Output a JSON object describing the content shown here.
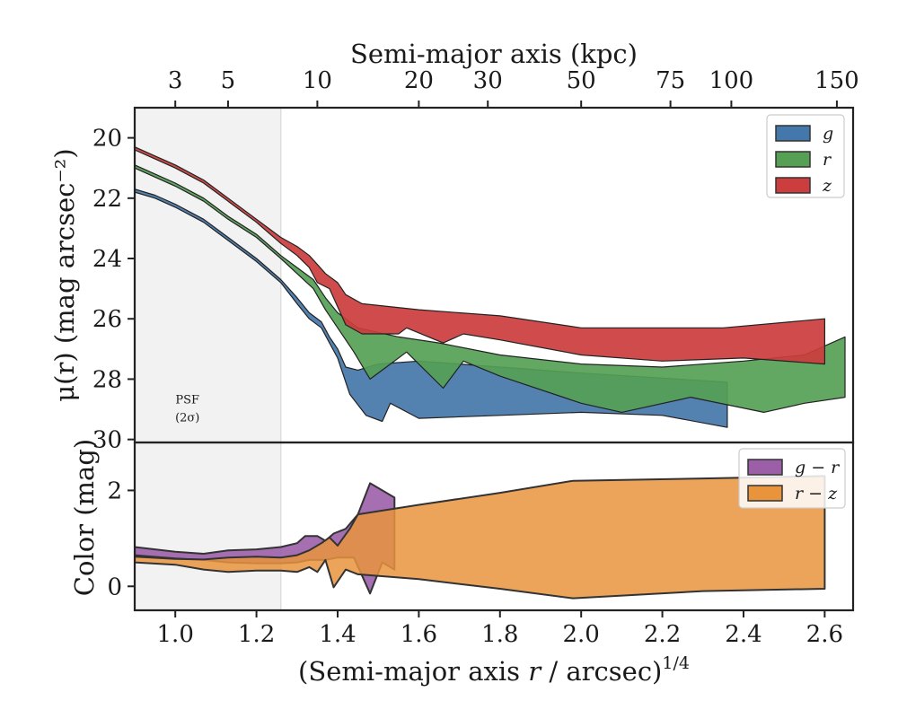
{
  "chart_data": [
    {
      "type": "area",
      "panel": "surface-brightness",
      "ylabel": "μ(r) (mag arcsec⁻²)",
      "top_xlabel": "Semi-major axis (kpc)",
      "xlim": [
        0.9,
        2.67
      ],
      "ylim": [
        30.1,
        19.0
      ],
      "y_inverted": true,
      "yticks": [
        20,
        22,
        24,
        26,
        28,
        30
      ],
      "top_ticks": [
        {
          "label": "3",
          "x": 1.0
        },
        {
          "label": "5",
          "x": 1.13
        },
        {
          "label": "10",
          "x": 1.35
        },
        {
          "label": "20",
          "x": 1.6
        },
        {
          "label": "30",
          "x": 1.77
        },
        {
          "label": "50",
          "x": 2.0
        },
        {
          "label": "75",
          "x": 2.22
        },
        {
          "label": "100",
          "x": 2.37
        },
        {
          "label": "150",
          "x": 2.63
        }
      ],
      "legend": {
        "position": "top-right"
      },
      "psf_region": {
        "x_end": 1.26,
        "label_line1": "PSF",
        "label_line2": "(2σ)"
      },
      "series": [
        {
          "name": "g",
          "color": "#4477aa",
          "upper": [
            [
              0.9,
              21.7
            ],
            [
              0.95,
              21.9
            ],
            [
              1.0,
              22.2
            ],
            [
              1.07,
              22.7
            ],
            [
              1.13,
              23.3
            ],
            [
              1.2,
              24.0
            ],
            [
              1.26,
              24.7
            ],
            [
              1.3,
              25.3
            ],
            [
              1.33,
              25.8
            ],
            [
              1.36,
              26.1
            ],
            [
              1.38,
              26.6
            ],
            [
              1.4,
              27.0
            ],
            [
              1.42,
              27.6
            ],
            [
              1.45,
              27.7
            ],
            [
              1.5,
              27.5
            ],
            [
              1.6,
              27.4
            ],
            [
              1.7,
              27.5
            ],
            [
              1.8,
              27.6
            ],
            [
              2.0,
              27.8
            ],
            [
              2.36,
              28.1
            ]
          ],
          "lower": [
            [
              0.9,
              21.8
            ],
            [
              0.95,
              22.0
            ],
            [
              1.0,
              22.3
            ],
            [
              1.07,
              22.8
            ],
            [
              1.13,
              23.4
            ],
            [
              1.2,
              24.1
            ],
            [
              1.26,
              24.8
            ],
            [
              1.3,
              25.5
            ],
            [
              1.33,
              26.0
            ],
            [
              1.36,
              26.3
            ],
            [
              1.38,
              26.8
            ],
            [
              1.4,
              27.3
            ],
            [
              1.43,
              28.5
            ],
            [
              1.47,
              29.2
            ],
            [
              1.51,
              29.4
            ],
            [
              1.53,
              28.8
            ],
            [
              1.6,
              29.3
            ],
            [
              1.8,
              29.2
            ],
            [
              2.0,
              29.1
            ],
            [
              2.2,
              29.2
            ],
            [
              2.36,
              29.6
            ]
          ]
        },
        {
          "name": "r",
          "color": "#55a055",
          "upper": [
            [
              0.9,
              20.9
            ],
            [
              0.95,
              21.2
            ],
            [
              1.0,
              21.5
            ],
            [
              1.07,
              22.0
            ],
            [
              1.13,
              22.6
            ],
            [
              1.2,
              23.2
            ],
            [
              1.26,
              23.9
            ],
            [
              1.3,
              24.3
            ],
            [
              1.34,
              24.7
            ],
            [
              1.37,
              25.3
            ],
            [
              1.4,
              25.8
            ],
            [
              1.45,
              26.3
            ],
            [
              1.55,
              26.6
            ],
            [
              1.65,
              26.8
            ],
            [
              1.8,
              27.2
            ],
            [
              2.0,
              27.5
            ],
            [
              2.2,
              27.6
            ],
            [
              2.4,
              27.4
            ],
            [
              2.55,
              27.2
            ],
            [
              2.65,
              26.6
            ]
          ],
          "lower": [
            [
              0.9,
              21.0
            ],
            [
              0.95,
              21.3
            ],
            [
              1.0,
              21.6
            ],
            [
              1.07,
              22.1
            ],
            [
              1.13,
              22.7
            ],
            [
              1.2,
              23.3
            ],
            [
              1.26,
              24.0
            ],
            [
              1.3,
              24.5
            ],
            [
              1.34,
              25.0
            ],
            [
              1.37,
              25.7
            ],
            [
              1.4,
              26.3
            ],
            [
              1.44,
              27.1
            ],
            [
              1.48,
              28.0
            ],
            [
              1.52,
              27.6
            ],
            [
              1.57,
              27.1
            ],
            [
              1.66,
              28.3
            ],
            [
              1.71,
              27.4
            ],
            [
              1.8,
              27.9
            ],
            [
              2.0,
              28.8
            ],
            [
              2.1,
              29.1
            ],
            [
              2.27,
              28.6
            ],
            [
              2.45,
              29.1
            ],
            [
              2.55,
              28.8
            ],
            [
              2.65,
              28.6
            ]
          ]
        },
        {
          "name": "z",
          "color": "#cc3d3d",
          "upper": [
            [
              0.9,
              20.3
            ],
            [
              0.95,
              20.6
            ],
            [
              1.0,
              20.9
            ],
            [
              1.07,
              21.4
            ],
            [
              1.13,
              22.0
            ],
            [
              1.2,
              22.7
            ],
            [
              1.26,
              23.3
            ],
            [
              1.3,
              23.6
            ],
            [
              1.33,
              23.9
            ],
            [
              1.35,
              24.2
            ],
            [
              1.37,
              24.5
            ],
            [
              1.4,
              24.8
            ],
            [
              1.42,
              25.2
            ],
            [
              1.46,
              25.5
            ],
            [
              1.6,
              25.7
            ],
            [
              1.8,
              25.9
            ],
            [
              2.0,
              26.3
            ],
            [
              2.2,
              26.3
            ],
            [
              2.35,
              26.3
            ],
            [
              2.6,
              26.0
            ]
          ],
          "lower": [
            [
              0.9,
              20.4
            ],
            [
              0.95,
              20.7
            ],
            [
              1.0,
              21.0
            ],
            [
              1.07,
              21.5
            ],
            [
              1.13,
              22.1
            ],
            [
              1.2,
              22.8
            ],
            [
              1.26,
              23.5
            ],
            [
              1.3,
              23.9
            ],
            [
              1.33,
              24.3
            ],
            [
              1.35,
              24.8
            ],
            [
              1.38,
              25.0
            ],
            [
              1.42,
              26.2
            ],
            [
              1.46,
              26.5
            ],
            [
              1.55,
              26.5
            ],
            [
              1.57,
              26.3
            ],
            [
              1.66,
              26.8
            ],
            [
              1.71,
              26.5
            ],
            [
              1.8,
              26.7
            ],
            [
              2.0,
              27.2
            ],
            [
              2.2,
              27.4
            ],
            [
              2.4,
              27.3
            ],
            [
              2.6,
              27.5
            ]
          ]
        }
      ]
    },
    {
      "type": "area",
      "panel": "color",
      "xlabel": "(Semi-major axis r / arcsec)^1/4",
      "ylabel": "Color (mag)",
      "xlim": [
        0.9,
        2.67
      ],
      "ylim": [
        -0.5,
        3.0
      ],
      "xticks": [
        1.0,
        1.2,
        1.4,
        1.6,
        1.8,
        2.0,
        2.2,
        2.4,
        2.6
      ],
      "yticks": [
        0,
        2
      ],
      "legend": {
        "position": "top-right"
      },
      "series": [
        {
          "name": "g − r",
          "color": "#9b5fa8",
          "upper": [
            [
              0.9,
              0.82
            ],
            [
              1.0,
              0.72
            ],
            [
              1.07,
              0.68
            ],
            [
              1.13,
              0.75
            ],
            [
              1.2,
              0.77
            ],
            [
              1.26,
              0.82
            ],
            [
              1.3,
              0.9
            ],
            [
              1.32,
              1.05
            ],
            [
              1.35,
              1.05
            ],
            [
              1.37,
              0.95
            ],
            [
              1.39,
              1.1
            ],
            [
              1.42,
              1.2
            ],
            [
              1.45,
              1.5
            ],
            [
              1.48,
              2.15
            ],
            [
              1.54,
              1.85
            ]
          ],
          "lower": [
            [
              1.54,
              0.35
            ],
            [
              1.51,
              0.5
            ],
            [
              1.48,
              -0.15
            ],
            [
              1.44,
              0.6
            ],
            [
              1.4,
              0.6
            ],
            [
              1.37,
              0.55
            ],
            [
              1.33,
              0.55
            ],
            [
              1.3,
              0.5
            ],
            [
              1.26,
              0.48
            ],
            [
              1.2,
              0.48
            ],
            [
              1.13,
              0.5
            ],
            [
              1.07,
              0.55
            ],
            [
              1.0,
              0.58
            ],
            [
              0.9,
              0.65
            ]
          ]
        },
        {
          "name": "r − z",
          "color": "#e8943d",
          "upper": [
            [
              0.9,
              0.62
            ],
            [
              1.0,
              0.57
            ],
            [
              1.07,
              0.56
            ],
            [
              1.13,
              0.6
            ],
            [
              1.2,
              0.62
            ],
            [
              1.26,
              0.6
            ],
            [
              1.3,
              0.65
            ],
            [
              1.33,
              0.75
            ],
            [
              1.36,
              0.9
            ],
            [
              1.38,
              1.02
            ],
            [
              1.4,
              0.85
            ],
            [
              1.43,
              1.2
            ],
            [
              1.45,
              1.5
            ],
            [
              1.6,
              1.7
            ],
            [
              1.8,
              1.95
            ],
            [
              1.98,
              2.2
            ],
            [
              2.3,
              2.25
            ],
            [
              2.6,
              2.3
            ]
          ],
          "lower": [
            [
              2.6,
              -0.05
            ],
            [
              2.3,
              -0.1
            ],
            [
              1.98,
              -0.25
            ],
            [
              1.8,
              -0.05
            ],
            [
              1.6,
              0.15
            ],
            [
              1.45,
              0.25
            ],
            [
              1.42,
              0.35
            ],
            [
              1.39,
              -0.02
            ],
            [
              1.37,
              0.55
            ],
            [
              1.35,
              0.3
            ],
            [
              1.33,
              0.4
            ],
            [
              1.3,
              0.3
            ],
            [
              1.26,
              0.33
            ],
            [
              1.2,
              0.33
            ],
            [
              1.13,
              0.3
            ],
            [
              1.07,
              0.35
            ],
            [
              1.0,
              0.45
            ],
            [
              0.9,
              0.5
            ]
          ]
        }
      ]
    }
  ]
}
